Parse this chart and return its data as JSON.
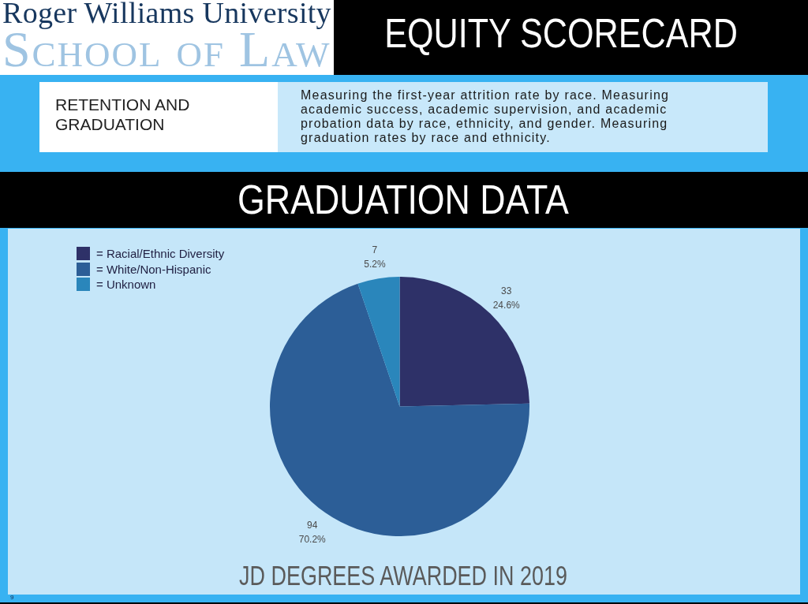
{
  "chart_data": {
    "type": "pie",
    "title": "GRADUATION DATA",
    "subtitle": "JD DEGREES AWARDED IN 2019",
    "categories": [
      "= Racial/Ethnic Diversity",
      "= White/Non-Hispanic",
      "= Unknown"
    ],
    "values": [
      33,
      94,
      7
    ],
    "colors": [
      "#2e3168",
      "#2c5e97",
      "#2a86bb"
    ],
    "value_labels": [
      "33\n24.6%",
      "94\n70.2%",
      "7\n5.2%"
    ],
    "legend": "top left",
    "annotations": [
      "Roger Williams University",
      "School of Law",
      "EQUITY SCORECARD",
      "RETENTION AND GRADUATION",
      "Measuring the first-year attrition rate by race. Measuring academic success, academic supervision, and academic probation data by race, ethnicity, and gender. Measuring graduation rates by race and ethnicity.",
      "9"
    ]
  }
}
